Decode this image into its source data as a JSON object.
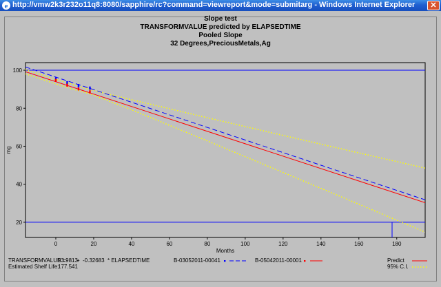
{
  "window": {
    "title": "http://vmw2k3r232o11q8:8080/sapphire/rc?command=viewreport&mode=submitarg - Windows Internet Explorer",
    "close_glyph": "✕",
    "icon": "ie-icon"
  },
  "chart_data": {
    "type": "line",
    "title_lines": [
      "Slope test",
      "TRANSFORMVALUE predicted by ELAPSEDTIME",
      "Pooled Slope",
      "32 Degrees,PreciousMetals,Ag"
    ],
    "xlabel": "Months",
    "ylabel": "mg",
    "xlim": [
      -16,
      195
    ],
    "ylim": [
      12,
      104
    ],
    "xticks": [
      0,
      20,
      40,
      60,
      80,
      100,
      120,
      140,
      160,
      180
    ],
    "yticks": [
      20,
      40,
      60,
      80,
      100
    ],
    "spec_limits": [
      20,
      100
    ],
    "shelf_life_x": 177.541,
    "grid": false,
    "series": [
      {
        "name": "Predict",
        "kind": "line",
        "color": "#ff0000",
        "dash": "solid",
        "x": [
          -16,
          195
        ],
        "y": [
          99.21,
          30.27
        ]
      },
      {
        "name": "95% C.I.",
        "kind": "line",
        "color": "#ffff00",
        "dash": "dotted",
        "x": [
          -16,
          0,
          8,
          18,
          40,
          80,
          120,
          160,
          195
        ],
        "y": [
          100.3,
          95.2,
          92.8,
          89.8,
          84.5,
          75.0,
          65.7,
          56.5,
          48.5
        ]
      },
      {
        "name": "95% C.I. lower",
        "kind": "line",
        "color": "#ffff00",
        "dash": "dotted",
        "x": [
          -16,
          0,
          8,
          18,
          40,
          80,
          120,
          160,
          195
        ],
        "y": [
          98.1,
          92.8,
          90.3,
          87.6,
          79.2,
          62.8,
          46.2,
          29.5,
          14.8
        ]
      },
      {
        "name": "B-03052011-00041",
        "kind": "line",
        "color": "#0000ff",
        "dash": "dashed",
        "x": [
          -16,
          195
        ],
        "y": [
          101.7,
          31.8
        ]
      },
      {
        "name": "B-03052011-00041 points",
        "kind": "scatter",
        "color": "#0000ff",
        "x": [
          0,
          0,
          6,
          6,
          12,
          12,
          18,
          18
        ],
        "y": [
          95.8,
          95.0,
          93.8,
          93.0,
          92.3,
          91.5,
          91.0,
          90.2
        ]
      },
      {
        "name": "B-05042011-00001 points",
        "kind": "scatter",
        "color": "#ff0000",
        "x": [
          0,
          0,
          6,
          6,
          12,
          12,
          18,
          18
        ],
        "y": [
          95.0,
          94.3,
          92.5,
          91.8,
          90.5,
          89.8,
          89.0,
          88.2
        ]
      }
    ],
    "legend": {
      "equation_label": "TRANSFORMVALUE =",
      "intercept": "93.9813",
      "sign": "+",
      "slope": "-0.32683",
      "term": "* ELAPSEDTIME",
      "shelf_label": "Estimated Shelf Life:",
      "shelf_value": "177.541",
      "batch1": "B-03052011-00041",
      "batch2": "B-05042011-00001",
      "predict": "Predict",
      "ci": "95% C.I."
    }
  }
}
